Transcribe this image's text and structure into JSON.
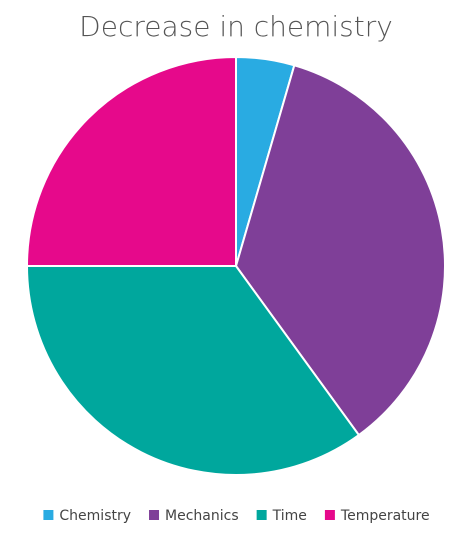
{
  "chart_data": {
    "type": "pie",
    "title": "Decrease in chemistry",
    "categories": [
      "Chemistry",
      "Mechanics",
      "Time",
      "Temperature"
    ],
    "values": [
      4.5,
      35.5,
      35,
      25
    ],
    "colors": [
      "#29abe2",
      "#7f3f98",
      "#00a79d",
      "#e6098b"
    ],
    "legend": "bottom"
  }
}
